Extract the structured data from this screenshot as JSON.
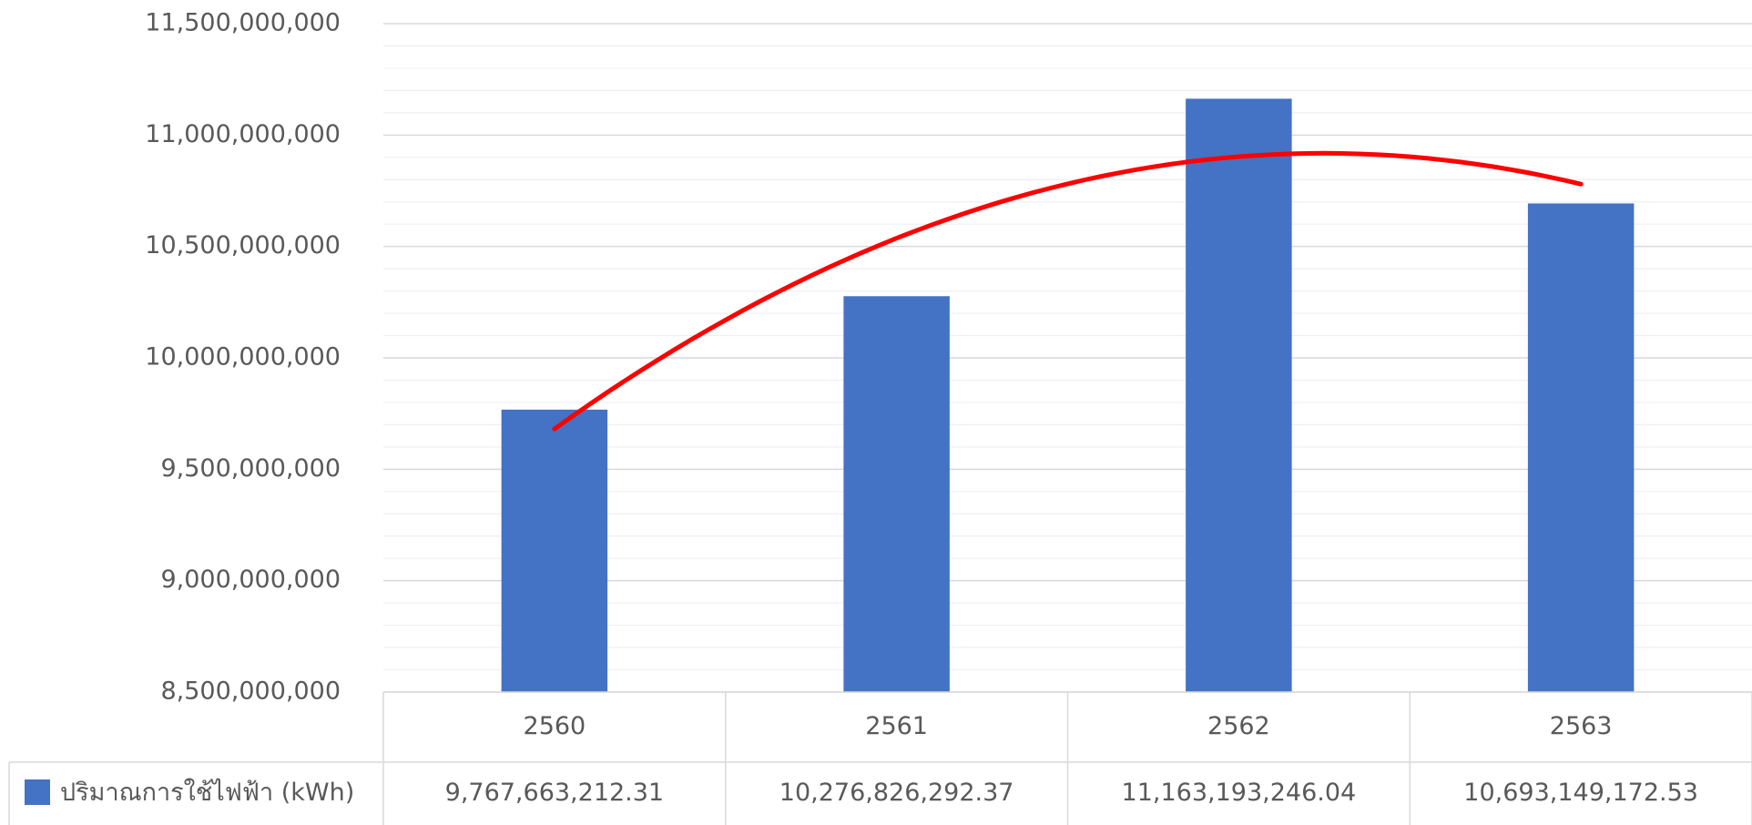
{
  "chart_data": {
    "type": "bar",
    "categories": [
      "2560",
      "2561",
      "2562",
      "2563"
    ],
    "series": [
      {
        "name": "ปริมาณการใช้ไฟฟ้า (kWh)",
        "color": "#4472c4",
        "values": [
          9767663212.31,
          10276826292.37,
          11163193246.04,
          10693149172.53
        ],
        "value_labels": [
          "9,767,663,212.31",
          "10,276,826,292.37",
          "11,163,193,246.04",
          "10,693,149,172.53"
        ]
      }
    ],
    "ylim": [
      8500000000,
      11500000000
    ],
    "yticks": [
      {
        "value": 8500000000,
        "label": "8,500,000,000"
      },
      {
        "value": 9000000000,
        "label": "9,000,000,000"
      },
      {
        "value": 9500000000,
        "label": "9,500,000,000"
      },
      {
        "value": 10000000000,
        "label": "10,000,000,000"
      },
      {
        "value": 10500000000,
        "label": "10,500,000,000"
      },
      {
        "value": 11000000000,
        "label": "11,000,000,000"
      },
      {
        "value": 11500000000,
        "label": "11,500,000,000"
      }
    ],
    "grid": true,
    "minor_grid_divisions": 5,
    "data_table": true,
    "trendline": {
      "type": "polynomial",
      "order": 2,
      "color": "#ff0000"
    }
  }
}
